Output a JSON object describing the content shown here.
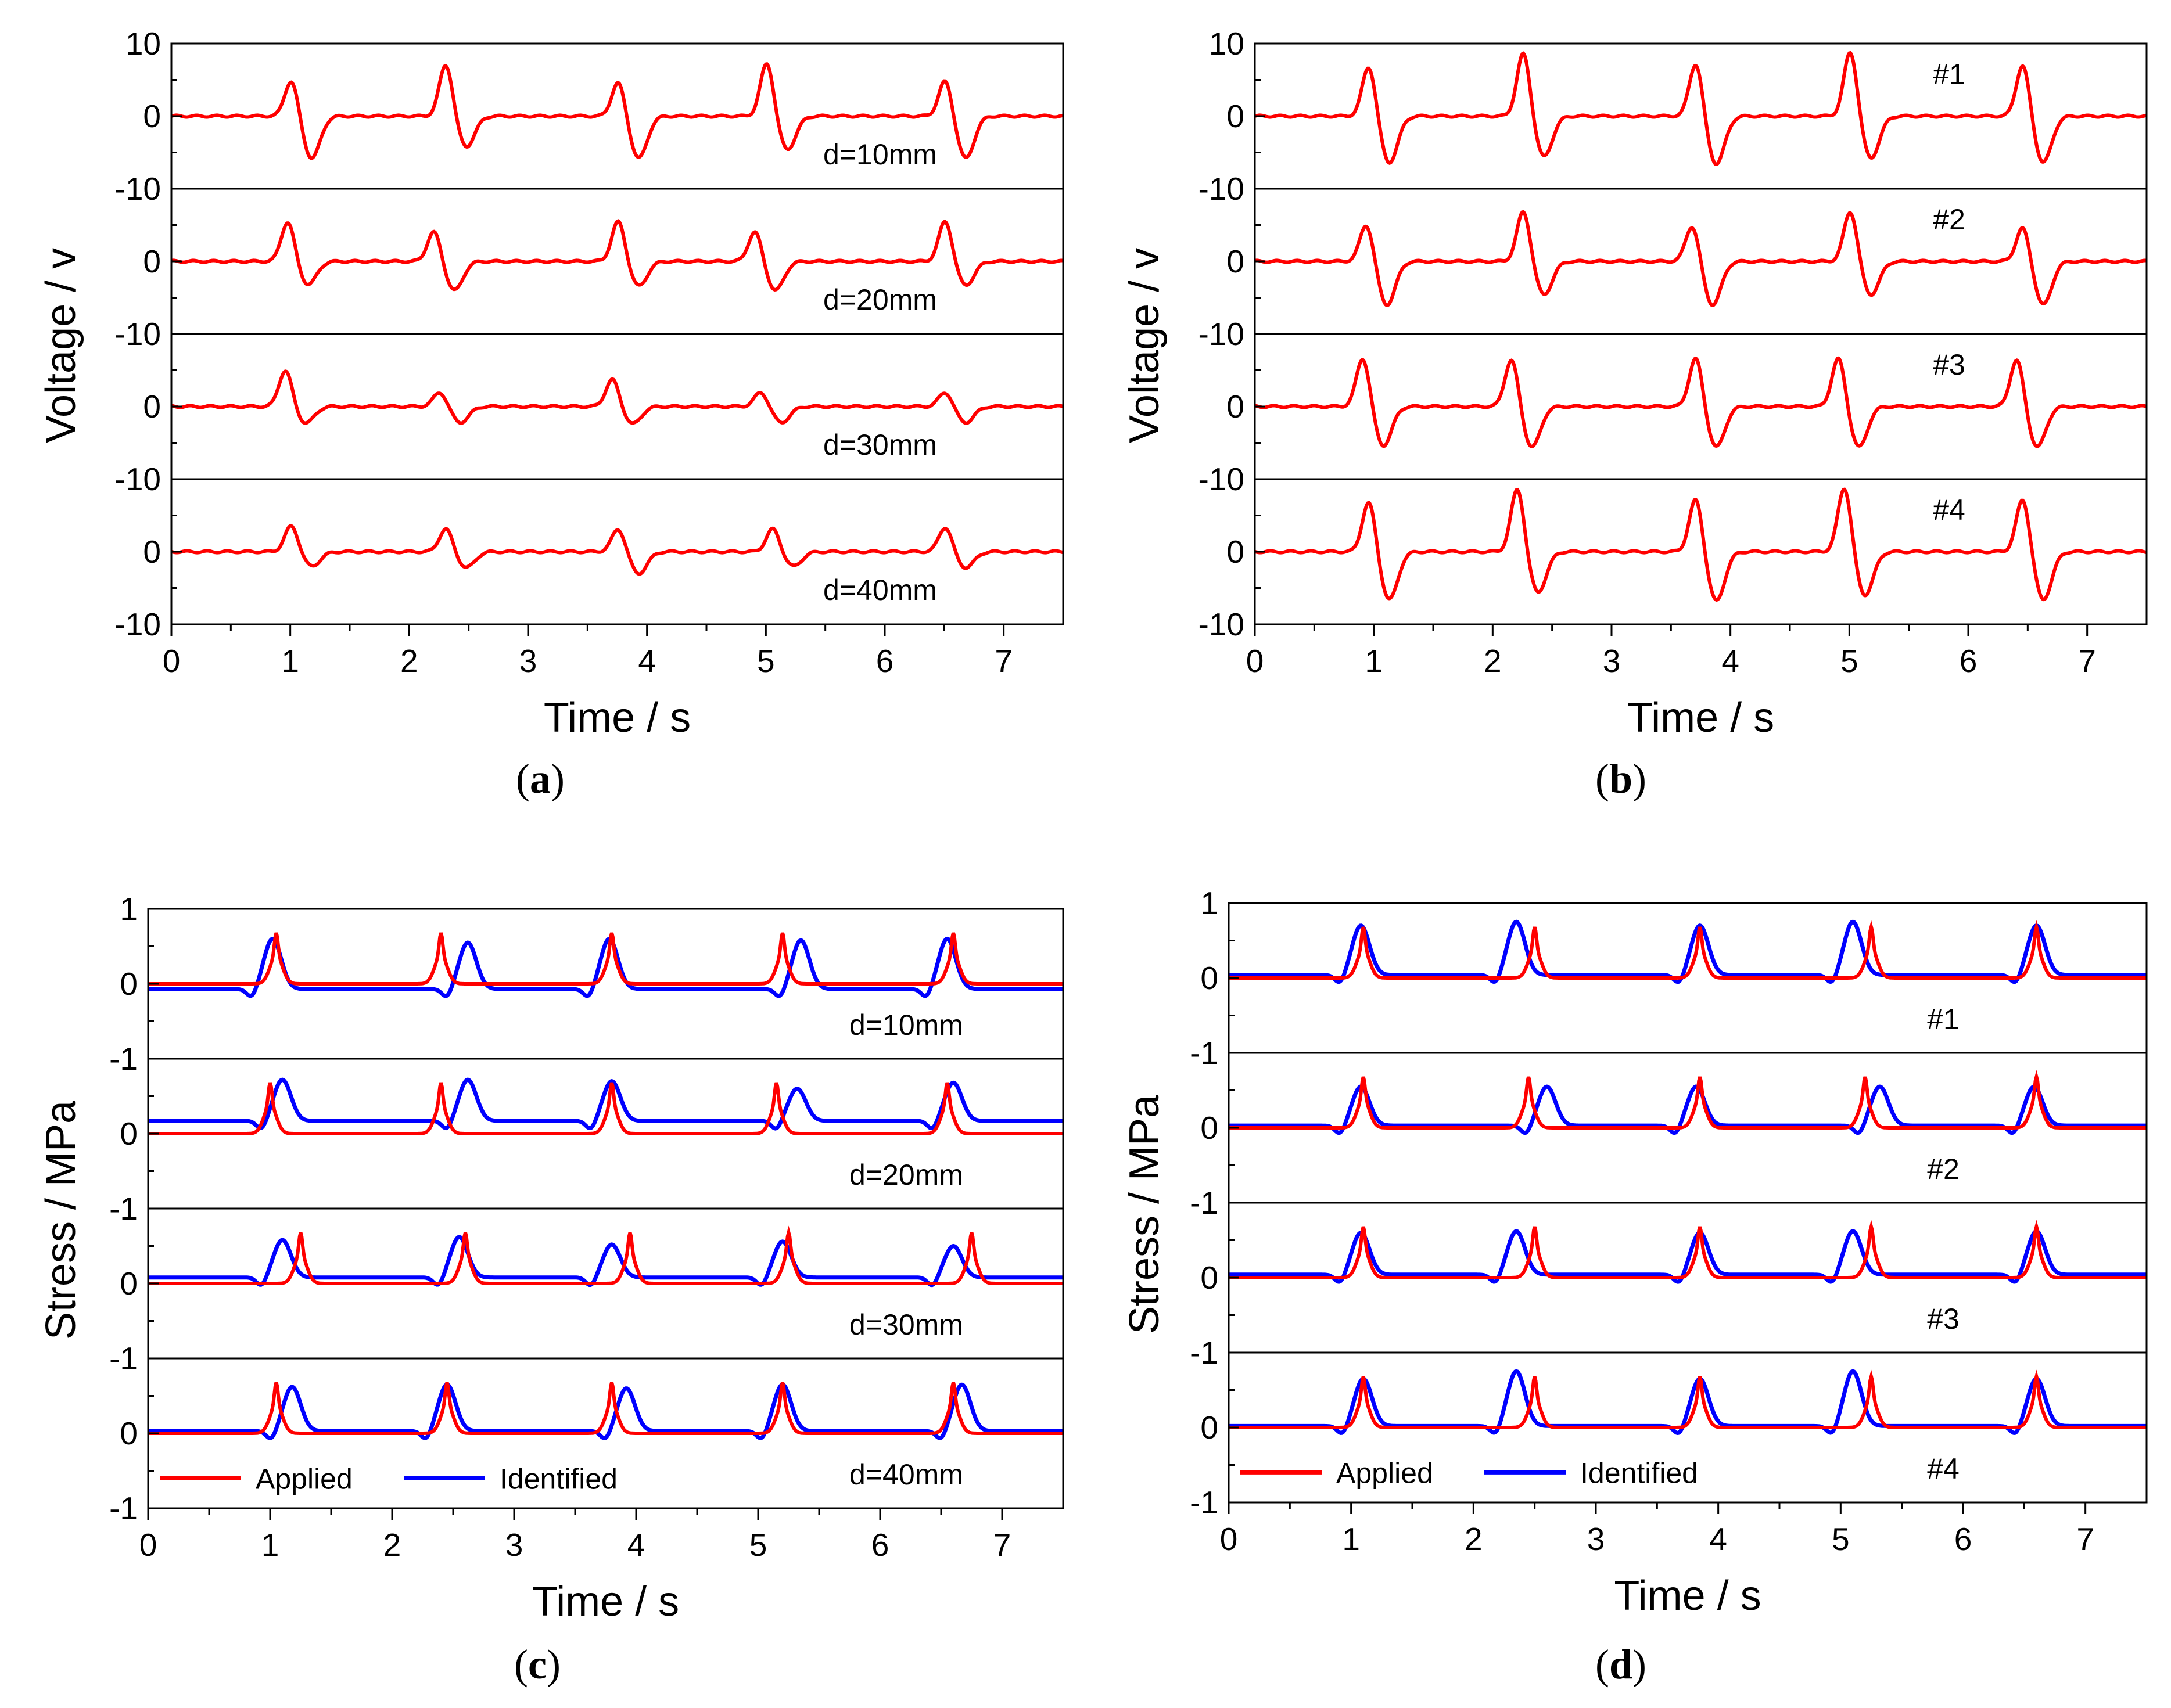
{
  "panels": [
    {
      "caption_letter": "a",
      "y_axis_label": "Voltage / v",
      "x_axis_label": "Time / s",
      "sub_annotations": [
        "d=10mm",
        "d=20mm",
        "d=30mm",
        "d=40mm"
      ],
      "legend": null
    },
    {
      "caption_letter": "b",
      "y_axis_label": "Voltage / v",
      "x_axis_label": "Time / s",
      "sub_annotations": [
        "#1",
        "#2",
        "#3",
        "#4"
      ],
      "legend": null
    },
    {
      "caption_letter": "c",
      "y_axis_label": "Stress / MPa",
      "x_axis_label": "Time / s",
      "sub_annotations": [
        "d=10mm",
        "d=20mm",
        "d=30mm",
        "d=40mm"
      ],
      "legend": [
        "Applied",
        "Identified"
      ]
    },
    {
      "caption_letter": "d",
      "y_axis_label": "Stress / MPa",
      "x_axis_label": "Time / s",
      "sub_annotations": [
        "#1",
        "#2",
        "#3",
        "#4"
      ],
      "legend": [
        "Applied",
        "Identified"
      ]
    }
  ],
  "colors": {
    "applied": "#ff0000",
    "identified": "#0000ff",
    "axes": "#000000"
  },
  "chart_data": [
    {
      "type": "line",
      "panel": "a",
      "xlabel": "Time / s",
      "ylabel": "Voltage / v",
      "xlim": [
        0,
        7.5
      ],
      "x_ticks": [
        0,
        1,
        2,
        3,
        4,
        5,
        6,
        7
      ],
      "sub_ylim": [
        -10,
        10
      ],
      "y_ticks": [
        10,
        0,
        -10,
        0,
        -10,
        0,
        -10,
        0,
        -10
      ],
      "grid": false,
      "subplots": [
        {
          "annotation": "d=10mm",
          "pulse_times": [
            1.05,
            2.35,
            3.8,
            5.05,
            6.55
          ],
          "pulse_peaks": [
            5,
            7.2,
            4.8,
            7.4,
            5
          ],
          "pulse_troughs": [
            -5.8,
            -4.2,
            -5.8,
            -4.6,
            -5.8
          ]
        },
        {
          "annotation": "d=20mm",
          "pulse_times": [
            1.02,
            2.25,
            3.8,
            4.95,
            6.55
          ],
          "pulse_peaks": [
            5.5,
            4.2,
            5.6,
            4.2,
            5.6
          ],
          "pulse_troughs": [
            -3.2,
            -4,
            -3.4,
            -4,
            -3.3
          ]
        },
        {
          "annotation": "d=30mm",
          "pulse_times": [
            1.0,
            2.3,
            3.75,
            5.0,
            6.55
          ],
          "pulse_peaks": [
            5,
            2,
            3.8,
            2,
            2
          ],
          "pulse_troughs": [
            -2.3,
            -2.2,
            -2.4,
            -2.2,
            -2.2
          ]
        },
        {
          "annotation": "d=40mm",
          "pulse_times": [
            1.05,
            2.35,
            3.8,
            5.1,
            6.55
          ],
          "pulse_peaks": [
            3.6,
            3.2,
            3.2,
            3.2,
            3.4
          ],
          "pulse_troughs": [
            -2,
            -2.2,
            -3,
            -2,
            -2.2
          ]
        }
      ]
    },
    {
      "type": "line",
      "panel": "b",
      "xlabel": "Time / s",
      "ylabel": "Voltage / v",
      "xlim": [
        0,
        7.5
      ],
      "x_ticks": [
        0,
        1,
        2,
        3,
        4,
        5,
        6,
        7
      ],
      "sub_ylim": [
        -10,
        10
      ],
      "y_ticks": [
        10,
        0,
        -10,
        0,
        -10,
        0,
        -10,
        0,
        -10
      ],
      "grid": false,
      "subplots": [
        {
          "annotation": "#1",
          "pulse_times": [
            1.0,
            2.3,
            3.75,
            5.05,
            6.5
          ],
          "pulse_peaks": [
            7,
            8.8,
            7.4,
            9,
            7.2
          ],
          "pulse_troughs": [
            -6.4,
            -5.6,
            -6.6,
            -5.8,
            -6.4
          ]
        },
        {
          "annotation": "#2",
          "pulse_times": [
            0.98,
            2.3,
            3.72,
            5.05,
            6.5
          ],
          "pulse_peaks": [
            5.2,
            7,
            5,
            7,
            4.8
          ],
          "pulse_troughs": [
            -6,
            -4.6,
            -6,
            -4.6,
            -6
          ]
        },
        {
          "annotation": "#3",
          "pulse_times": [
            0.95,
            2.2,
            3.75,
            4.95,
            6.45
          ],
          "pulse_peaks": [
            6.8,
            6.6,
            6.8,
            6.8,
            6.6
          ],
          "pulse_troughs": [
            -5.4,
            -5.6,
            -5.6,
            -5.6,
            -5.6
          ]
        },
        {
          "annotation": "#4",
          "pulse_times": [
            1.0,
            2.25,
            3.75,
            5.0,
            6.5
          ],
          "pulse_peaks": [
            7,
            8.8,
            7.4,
            9,
            7.4
          ],
          "pulse_troughs": [
            -6.6,
            -5.6,
            -6.8,
            -6,
            -6.6
          ]
        }
      ]
    },
    {
      "type": "line",
      "panel": "c",
      "xlabel": "Time / s",
      "ylabel": "Stress / MPa",
      "xlim": [
        0,
        7.5
      ],
      "x_ticks": [
        0,
        1,
        2,
        3,
        4,
        5,
        6,
        7
      ],
      "sub_ylim": [
        -1,
        1
      ],
      "y_ticks": [
        1,
        0,
        -1,
        0,
        -1,
        0,
        -1,
        0,
        -1
      ],
      "grid": false,
      "legend_location": "bottom-left",
      "subplots": [
        {
          "annotation": "d=10mm",
          "applied": {
            "pulse_times": [
              1.05,
              2.4,
              3.8,
              5.2,
              6.6
            ],
            "peak": 0.68
          },
          "identified": {
            "pulse_times": [
              1.02,
              2.62,
              3.78,
              5.35,
              6.55
            ],
            "pulse_peaks": [
              0.6,
              0.55,
              0.6,
              0.58,
              0.6
            ],
            "baseline": -0.07
          }
        },
        {
          "annotation": "d=20mm",
          "applied": {
            "pulse_times": [
              1.0,
              2.4,
              3.8,
              5.15,
              6.55
            ],
            "peak": 0.68
          },
          "identified": {
            "pulse_times": [
              1.1,
              2.62,
              3.8,
              5.32,
              6.6
            ],
            "pulse_peaks": [
              0.72,
              0.72,
              0.7,
              0.6,
              0.68
            ],
            "baseline": 0.17
          }
        },
        {
          "annotation": "d=30mm",
          "applied": {
            "pulse_times": [
              1.25,
              2.6,
              3.95,
              5.25,
              6.75
            ],
            "peak": 0.68
          },
          "identified": {
            "pulse_times": [
              1.1,
              2.55,
              3.8,
              5.2,
              6.6
            ],
            "pulse_peaks": [
              0.58,
              0.62,
              0.52,
              0.56,
              0.5
            ],
            "baseline": 0.08
          }
        },
        {
          "annotation": "d=40mm",
          "applied": {
            "pulse_times": [
              1.05,
              2.45,
              3.8,
              5.2,
              6.6
            ],
            "peak": 0.68
          },
          "identified": {
            "pulse_times": [
              1.18,
              2.45,
              3.92,
              5.2,
              6.67
            ],
            "pulse_peaks": [
              0.62,
              0.65,
              0.6,
              0.65,
              0.65
            ],
            "baseline": 0.03
          }
        }
      ]
    },
    {
      "type": "line",
      "panel": "d",
      "xlabel": "Time / s",
      "ylabel": "Stress / MPa",
      "xlim": [
        0,
        7.5
      ],
      "x_ticks": [
        0,
        1,
        2,
        3,
        4,
        5,
        6,
        7
      ],
      "sub_ylim": [
        -1,
        1
      ],
      "y_ticks": [
        1,
        0,
        -1,
        0,
        -1,
        0,
        -1,
        0,
        -1
      ],
      "grid": false,
      "legend_location": "bottom-left",
      "subplots": [
        {
          "annotation": "#1",
          "applied": {
            "pulse_times": [
              1.1,
              2.5,
              3.85,
              5.25,
              6.6
            ],
            "peak": 0.68
          },
          "identified": {
            "pulse_times": [
              1.08,
              2.35,
              3.85,
              5.1,
              6.6
            ],
            "pulse_peaks": [
              0.7,
              0.75,
              0.7,
              0.75,
              0.7
            ],
            "baseline": 0.04
          }
        },
        {
          "annotation": "#2",
          "applied": {
            "pulse_times": [
              1.1,
              2.45,
              3.85,
              5.2,
              6.6
            ],
            "peak": 0.68
          },
          "identified": {
            "pulse_times": [
              1.08,
              2.6,
              3.82,
              5.32,
              6.58
            ],
            "pulse_peaks": [
              0.55,
              0.55,
              0.55,
              0.55,
              0.55
            ],
            "baseline": 0.03
          }
        },
        {
          "annotation": "#3",
          "applied": {
            "pulse_times": [
              1.1,
              2.5,
              3.85,
              5.25,
              6.6
            ],
            "peak": 0.68
          },
          "identified": {
            "pulse_times": [
              1.08,
              2.35,
              3.85,
              5.1,
              6.6
            ],
            "pulse_peaks": [
              0.6,
              0.62,
              0.6,
              0.62,
              0.62
            ],
            "baseline": 0.04
          }
        },
        {
          "annotation": "#4",
          "applied": {
            "pulse_times": [
              1.1,
              2.5,
              3.85,
              5.25,
              6.6
            ],
            "peak": 0.68
          },
          "identified": {
            "pulse_times": [
              1.1,
              2.35,
              3.85,
              5.1,
              6.6
            ],
            "pulse_peaks": [
              0.65,
              0.75,
              0.65,
              0.75,
              0.65
            ],
            "baseline": 0.02
          }
        }
      ]
    }
  ]
}
